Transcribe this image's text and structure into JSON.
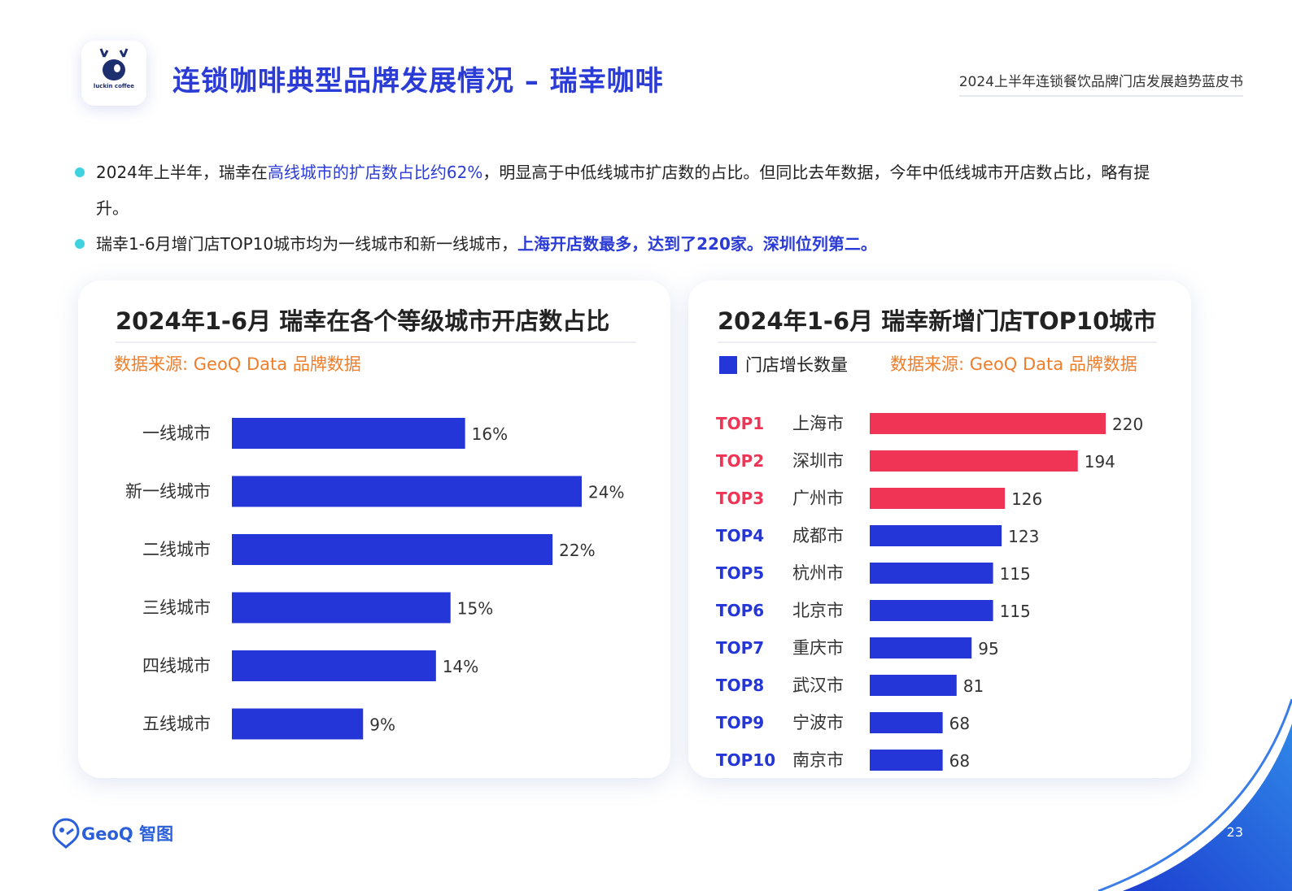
{
  "logo": {
    "brand_text": "luckin coffee"
  },
  "header": {
    "title": "连锁咖啡典型品牌发展情况 – 瑞幸咖啡",
    "report_name": "2024上半年连锁餐饮品牌门店发展趋势蓝皮书"
  },
  "bullets": {
    "b1_part1": "2024年上半年，瑞幸在",
    "b1_highlight": "高线城市的扩店数占比约62%",
    "b1_part2": "，明显高于中低线城市扩店数的占比。但同比去年数据，今年中低线城市开店数占比，略有提升。",
    "b2_part1": "瑞幸1-6月增门店TOP10城市均为一线城市和新一线城市，",
    "b2_highlight": "上海开店数最多，达到了220家。深圳位列第二。"
  },
  "colors": {
    "blue": "#2436d8",
    "red": "#f03456",
    "orange": "#f07d2a",
    "title_blue": "#2b3bd6",
    "cyan": "#3dd3e0"
  },
  "chart_data": [
    {
      "type": "bar",
      "orientation": "horizontal",
      "title": "2024年1-6月 瑞幸在各个等级城市开店数占比",
      "source": "数据来源: GeoQ Data 品牌数据",
      "categories": [
        "一线城市",
        "新一线城市",
        "二线城市",
        "三线城市",
        "四线城市",
        "五线城市"
      ],
      "values": [
        16,
        24,
        22,
        15,
        14,
        9
      ],
      "value_labels": [
        "16%",
        "24%",
        "22%",
        "15%",
        "14%",
        "9%"
      ],
      "unit": "%",
      "xlim": [
        0,
        24
      ]
    },
    {
      "type": "bar",
      "orientation": "horizontal",
      "title": "2024年1-6月 瑞幸新增门店TOP10城市",
      "source": "数据来源: GeoQ Data 品牌数据",
      "legend": "门店增长数量",
      "ranks": [
        "TOP1",
        "TOP2",
        "TOP3",
        "TOP4",
        "TOP5",
        "TOP6",
        "TOP7",
        "TOP8",
        "TOP9",
        "TOP10"
      ],
      "categories": [
        "上海市",
        "深圳市",
        "广州市",
        "成都市",
        "杭州市",
        "北京市",
        "重庆市",
        "武汉市",
        "宁波市",
        "南京市"
      ],
      "values": [
        220,
        194,
        126,
        123,
        115,
        115,
        95,
        81,
        68,
        68
      ],
      "highlight_top": 3,
      "xlim": [
        0,
        220
      ]
    }
  ],
  "footer": {
    "brand": "GeoQ 智图",
    "page": "23"
  }
}
